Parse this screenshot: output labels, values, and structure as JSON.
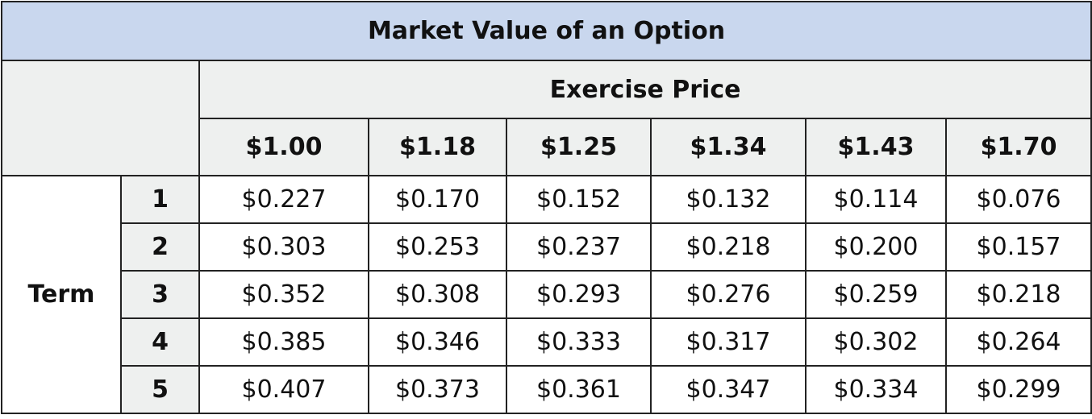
{
  "table": {
    "title": "Market Value of an Option",
    "column_group_label": "Exercise Price",
    "row_group_label": "Term",
    "columns": [
      "$1.00",
      "$1.18",
      "$1.25",
      "$1.34",
      "$1.43",
      "$1.70"
    ],
    "rows": [
      {
        "term": "1",
        "values": [
          "$0.227",
          "$0.170",
          "$0.152",
          "$0.132",
          "$0.114",
          "$0.076"
        ]
      },
      {
        "term": "2",
        "values": [
          "$0.303",
          "$0.253",
          "$0.237",
          "$0.218",
          "$0.200",
          "$0.157"
        ]
      },
      {
        "term": "3",
        "values": [
          "$0.352",
          "$0.308",
          "$0.293",
          "$0.276",
          "$0.259",
          "$0.218"
        ]
      },
      {
        "term": "4",
        "values": [
          "$0.385",
          "$0.346",
          "$0.333",
          "$0.317",
          "$0.302",
          "$0.264"
        ]
      },
      {
        "term": "5",
        "values": [
          "$0.407",
          "$0.373",
          "$0.361",
          "$0.347",
          "$0.334",
          "$0.299"
        ]
      }
    ]
  }
}
